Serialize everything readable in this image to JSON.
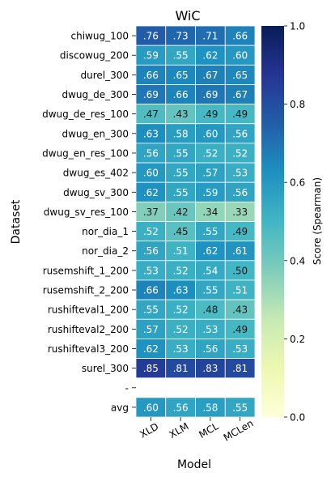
{
  "chart_data": {
    "type": "heatmap",
    "title": "WiC",
    "xlabel": "Model",
    "ylabel": "Dataset",
    "colorbar_label": "Score (Spearman)",
    "colorbar_ticks": [
      "0.0",
      "0.2",
      "0.4",
      "0.6",
      "0.8",
      "1.0"
    ],
    "colorbar_range": [
      0.0,
      1.0
    ],
    "colormap": "YlGnBu",
    "columns": [
      "XLD",
      "XLM",
      "MCL",
      "MCLen"
    ],
    "rows": [
      {
        "label": "chiwug_100",
        "values": [
          0.76,
          0.73,
          0.71,
          0.66
        ],
        "texts": [
          ".76",
          ".73",
          ".71",
          ".66"
        ]
      },
      {
        "label": "discowug_200",
        "values": [
          0.59,
          0.55,
          0.62,
          0.6
        ],
        "texts": [
          ".59",
          ".55",
          ".62",
          ".60"
        ]
      },
      {
        "label": "durel_300",
        "values": [
          0.66,
          0.65,
          0.67,
          0.65
        ],
        "texts": [
          ".66",
          ".65",
          ".67",
          ".65"
        ]
      },
      {
        "label": "dwug_de_300",
        "values": [
          0.69,
          0.66,
          0.69,
          0.67
        ],
        "texts": [
          ".69",
          ".66",
          ".69",
          ".67"
        ]
      },
      {
        "label": "dwug_de_res_100",
        "values": [
          0.47,
          0.43,
          0.49,
          0.49
        ],
        "texts": [
          ".47",
          ".43",
          ".49",
          ".49"
        ]
      },
      {
        "label": "dwug_en_300",
        "values": [
          0.63,
          0.58,
          0.6,
          0.56
        ],
        "texts": [
          ".63",
          ".58",
          ".60",
          ".56"
        ]
      },
      {
        "label": "dwug_en_res_100",
        "values": [
          0.56,
          0.55,
          0.52,
          0.52
        ],
        "texts": [
          ".56",
          ".55",
          ".52",
          ".52"
        ]
      },
      {
        "label": "dwug_es_402",
        "values": [
          0.6,
          0.55,
          0.57,
          0.53
        ],
        "texts": [
          ".60",
          ".55",
          ".57",
          ".53"
        ]
      },
      {
        "label": "dwug_sv_300",
        "values": [
          0.62,
          0.55,
          0.59,
          0.56
        ],
        "texts": [
          ".62",
          ".55",
          ".59",
          ".56"
        ]
      },
      {
        "label": "dwug_sv_res_100",
        "values": [
          0.37,
          0.42,
          0.34,
          0.33
        ],
        "texts": [
          ".37",
          ".42",
          ".34",
          ".33"
        ]
      },
      {
        "label": "nor_dia_1",
        "values": [
          0.52,
          0.45,
          0.55,
          0.49
        ],
        "texts": [
          ".52",
          ".45",
          ".55",
          ".49"
        ]
      },
      {
        "label": "nor_dia_2",
        "values": [
          0.56,
          0.51,
          0.62,
          0.61
        ],
        "texts": [
          ".56",
          ".51",
          ".62",
          ".61"
        ]
      },
      {
        "label": "rusemshift_1_200",
        "values": [
          0.53,
          0.52,
          0.54,
          0.5
        ],
        "texts": [
          ".53",
          ".52",
          ".54",
          ".50"
        ]
      },
      {
        "label": "rusemshift_2_200",
        "values": [
          0.66,
          0.63,
          0.55,
          0.51
        ],
        "texts": [
          ".66",
          ".63",
          ".55",
          ".51"
        ]
      },
      {
        "label": "rushifteval1_200",
        "values": [
          0.55,
          0.52,
          0.48,
          0.43
        ],
        "texts": [
          ".55",
          ".52",
          ".48",
          ".43"
        ]
      },
      {
        "label": "rushifteval2_200",
        "values": [
          0.57,
          0.52,
          0.53,
          0.49
        ],
        "texts": [
          ".57",
          ".52",
          ".53",
          ".49"
        ]
      },
      {
        "label": "rushifteval3_200",
        "values": [
          0.62,
          0.53,
          0.56,
          0.53
        ],
        "texts": [
          ".62",
          ".53",
          ".56",
          ".53"
        ]
      },
      {
        "label": "surel_300",
        "values": [
          0.85,
          0.81,
          0.83,
          0.81
        ],
        "texts": [
          ".85",
          ".81",
          ".83",
          ".81"
        ]
      },
      {
        "label": "-",
        "values": [
          null,
          null,
          null,
          null
        ],
        "texts": [
          "",
          "",
          "",
          ""
        ]
      },
      {
        "label": "avg",
        "values": [
          0.6,
          0.56,
          0.58,
          0.55
        ],
        "texts": [
          ".60",
          ".56",
          ".58",
          ".55"
        ]
      }
    ]
  }
}
